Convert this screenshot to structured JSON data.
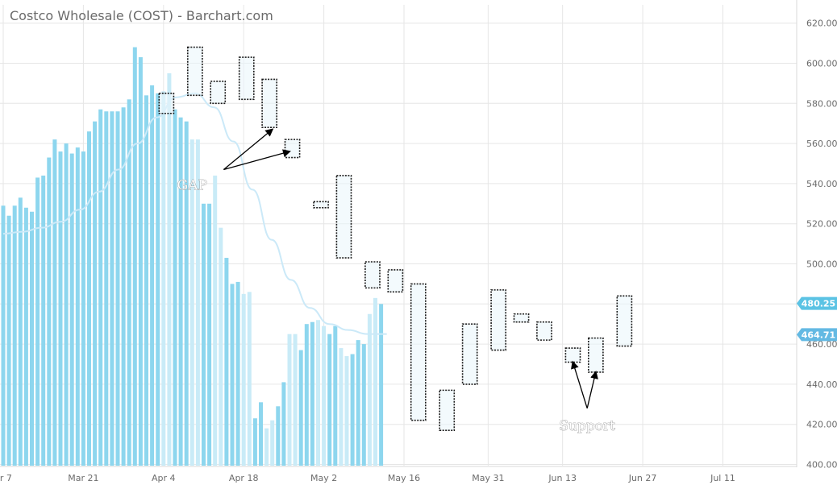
{
  "chart_data": {
    "type": "bar",
    "title": "Costco Wholesale (COST) - Barchart.com",
    "ylim": [
      400,
      620
    ],
    "yticks": [
      "400.00",
      "420.00",
      "440.00",
      "460.00",
      "480.00",
      "500.00",
      "520.00",
      "540.00",
      "560.00",
      "580.00",
      "600.00",
      "620.00"
    ],
    "xticks": [
      {
        "label": "ar 7",
        "i": 0
      },
      {
        "label": "Mar 21",
        "i": 14
      },
      {
        "label": "Apr 4",
        "i": 28
      },
      {
        "label": "Apr 18",
        "i": 42
      },
      {
        "label": "May 2",
        "i": 56
      },
      {
        "label": "May 16",
        "i": 70
      },
      {
        "label": "May 31",
        "i": 84.7
      },
      {
        "label": "Jun 13",
        "i": 97.7
      },
      {
        "label": "Jun 27",
        "i": 111.7
      },
      {
        "label": "Jul 11",
        "i": 125.7
      }
    ],
    "grid": true,
    "series": [
      {
        "values": [
          529,
          524,
          529,
          533,
          528,
          526,
          543,
          544,
          553,
          562,
          556,
          560,
          555,
          558,
          556,
          566,
          571,
          577,
          576,
          576,
          576,
          578,
          582,
          608,
          603,
          584,
          589,
          585,
          586,
          595,
          577,
          573,
          571,
          562,
          562,
          530,
          530,
          544,
          518,
          503,
          490,
          491,
          485,
          486,
          423,
          431,
          418,
          422,
          429,
          441,
          465,
          465,
          457,
          470,
          471,
          472,
          469,
          465,
          469,
          458,
          454,
          455,
          462,
          460,
          475,
          483,
          480
        ]
      },
      {
        "type": "line",
        "values": [
          515,
          516,
          518,
          521,
          527,
          536,
          547,
          560,
          573,
          583,
          585,
          578,
          561,
          537,
          512,
          492,
          478,
          470,
          467,
          465,
          465
        ]
      }
    ],
    "price_labels": [
      {
        "value": 480.25,
        "label": "480.25",
        "color": "#5bc3e4"
      },
      {
        "value": 464.71,
        "label": "464.71",
        "color": "#63b9e3"
      }
    ],
    "gap_boxes": [
      {
        "from": 28,
        "to": 29,
        "low": 575,
        "high": 585
      },
      {
        "from": 33,
        "to": 34,
        "low": 584,
        "high": 608
      },
      {
        "from": 37,
        "to": 38,
        "low": 580,
        "high": 591
      },
      {
        "from": 42,
        "to": 43,
        "low": 582,
        "high": 603
      },
      {
        "from": 46,
        "to": 47,
        "low": 568,
        "high": 592
      },
      {
        "from": 50,
        "to": 51,
        "low": 553,
        "high": 562
      },
      {
        "from": 55,
        "to": 56,
        "low": 528,
        "high": 531
      },
      {
        "from": 59,
        "to": 60,
        "low": 503,
        "high": 544
      },
      {
        "from": 64,
        "to": 65,
        "low": 488,
        "high": 501
      },
      {
        "from": 68,
        "to": 69,
        "low": 486,
        "high": 497
      },
      {
        "from": 72,
        "to": 73,
        "low": 422,
        "high": 490
      },
      {
        "from": 77,
        "to": 78,
        "low": 417,
        "high": 437
      },
      {
        "from": 81,
        "to": 82,
        "low": 440,
        "high": 470
      },
      {
        "from": 86,
        "to": 87,
        "low": 457,
        "high": 487
      },
      {
        "from": 90,
        "to": 91,
        "low": 471,
        "high": 475
      },
      {
        "from": 94,
        "to": 95,
        "low": 462,
        "high": 471
      },
      {
        "from": 99,
        "to": 100,
        "low": 451,
        "high": 458
      },
      {
        "from": 103,
        "to": 104,
        "low": 446,
        "high": 463
      },
      {
        "from": 108,
        "to": 109,
        "low": 459,
        "high": 484
      }
    ],
    "annotations": [
      {
        "text": "GAP",
        "text_at": [
          33,
          537
        ],
        "arrows": [
          {
            "from": [
              38.5,
              547
            ],
            "to": [
              47,
              567
            ]
          },
          {
            "from": [
              38.5,
              547
            ],
            "to": [
              50,
              556
            ]
          }
        ]
      },
      {
        "text": "Support",
        "text_at": [
          102,
          417
        ],
        "arrows": [
          {
            "from": [
              102,
              428
            ],
            "to": [
              99.5,
              451
            ]
          },
          {
            "from": [
              102,
              428
            ],
            "to": [
              103.5,
              446
            ]
          }
        ]
      }
    ],
    "colors": {
      "bar": "#8dd6ee",
      "bar_inside_box": "#c9ebf7",
      "box_fill": "#eaf6fc",
      "box_stroke": "#1c1c1c",
      "line": "#cbe9f8",
      "grid": "#e6e6e6"
    }
  }
}
